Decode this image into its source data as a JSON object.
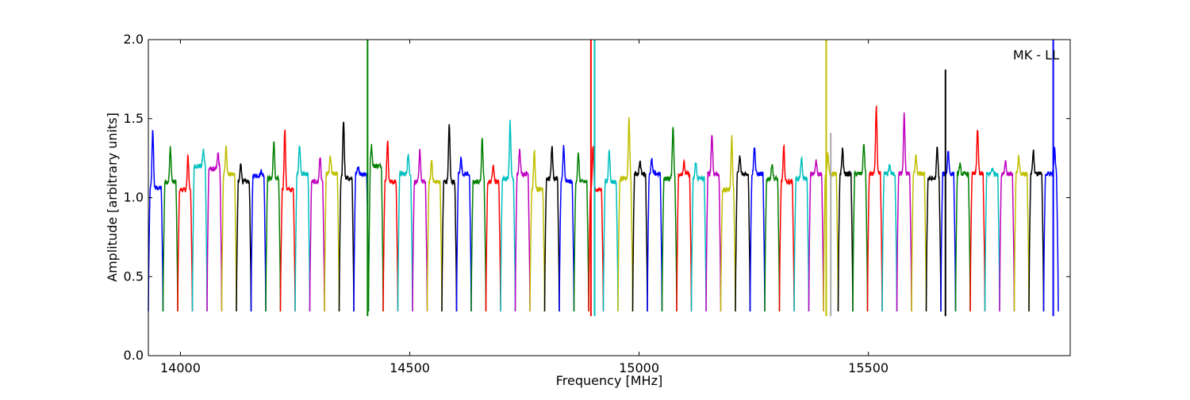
{
  "chart_data": {
    "type": "line",
    "title": "",
    "xlabel": "Frequency [MHz]",
    "ylabel": "Amplitude [arbitrary units]",
    "xlim": [
      13930,
      15940
    ],
    "ylim": [
      0.0,
      2.0
    ],
    "xticks": [
      14000,
      14500,
      15000,
      15500
    ],
    "xtick_labels": [
      "14000",
      "14500",
      "15000",
      "15500"
    ],
    "yticks": [
      0.0,
      0.5,
      1.0,
      1.5,
      2.0
    ],
    "ytick_labels": [
      "0.0",
      "0.5",
      "1.0",
      "1.5",
      "2.0"
    ],
    "grid": false,
    "legend": "none",
    "annotation": "MK - LL",
    "channel_width_mhz": 32,
    "channel_color_cycle": [
      "#0000ff",
      "#008000",
      "#ff0000",
      "#00bfbf",
      "#bf00bf",
      "#bfbf00",
      "#000000"
    ],
    "channels": [
      {
        "x0": 13930,
        "x1": 13962,
        "color": "#0000ff",
        "peak_y": 1.43,
        "peak_pos": 0.3,
        "plateau": 1.06
      },
      {
        "x0": 13962,
        "x1": 13994,
        "color": "#008000",
        "peak_y": 1.32,
        "peak_pos": 0.5,
        "plateau": 1.1
      },
      {
        "x0": 13994,
        "x1": 14026,
        "color": "#ff0000",
        "peak_y": 1.26,
        "peak_pos": 0.7,
        "plateau": 1.05
      },
      {
        "x0": 14026,
        "x1": 14058,
        "color": "#00bfbf",
        "peak_y": 1.3,
        "peak_pos": 0.75,
        "plateau": 1.2
      },
      {
        "x0": 14058,
        "x1": 14090,
        "color": "#bf00bf",
        "peak_y": 1.28,
        "peak_pos": 0.75,
        "plateau": 1.18
      },
      {
        "x0": 14090,
        "x1": 14122,
        "color": "#bfbf00",
        "peak_y": 1.32,
        "peak_pos": 0.3,
        "plateau": 1.15
      },
      {
        "x0": 14122,
        "x1": 14154,
        "color": "#000000",
        "peak_y": 1.22,
        "peak_pos": 0.3,
        "plateau": 1.1
      },
      {
        "x0": 14154,
        "x1": 14186,
        "color": "#0000ff",
        "peak_y": 1.17,
        "peak_pos": 0.7,
        "plateau": 1.14
      },
      {
        "x0": 14186,
        "x1": 14218,
        "color": "#008000",
        "peak_y": 1.35,
        "peak_pos": 0.55,
        "plateau": 1.12
      },
      {
        "x0": 14218,
        "x1": 14250,
        "color": "#ff0000",
        "peak_y": 1.43,
        "peak_pos": 0.3,
        "plateau": 1.05
      },
      {
        "x0": 14250,
        "x1": 14282,
        "color": "#00bfbf",
        "peak_y": 1.34,
        "peak_pos": 0.3,
        "plateau": 1.15
      },
      {
        "x0": 14282,
        "x1": 14314,
        "color": "#bf00bf",
        "peak_y": 1.26,
        "peak_pos": 0.7,
        "plateau": 1.1
      },
      {
        "x0": 14314,
        "x1": 14346,
        "color": "#bfbf00",
        "peak_y": 1.26,
        "peak_pos": 0.4,
        "plateau": 1.15
      },
      {
        "x0": 14346,
        "x1": 14378,
        "color": "#000000",
        "peak_y": 1.49,
        "peak_pos": 0.3,
        "plateau": 1.12
      },
      {
        "x0": 14378,
        "x1": 14410,
        "color": "#0000ff",
        "peak_y": 1.2,
        "peak_pos": 0.3,
        "plateau": 1.15
      },
      {
        "x0": 14410,
        "x1": 14442,
        "color": "#008000",
        "peak_y": 1.33,
        "peak_pos": 0.2,
        "plateau": 1.2
      },
      {
        "x0": 14442,
        "x1": 14474,
        "color": "#ff0000",
        "peak_y": 1.36,
        "peak_pos": 0.3,
        "plateau": 1.1
      },
      {
        "x0": 14474,
        "x1": 14506,
        "color": "#00bfbf",
        "peak_y": 1.27,
        "peak_pos": 0.7,
        "plateau": 1.15
      },
      {
        "x0": 14506,
        "x1": 14538,
        "color": "#bf00bf",
        "peak_y": 1.3,
        "peak_pos": 0.5,
        "plateau": 1.1
      },
      {
        "x0": 14538,
        "x1": 14570,
        "color": "#bfbf00",
        "peak_y": 1.24,
        "peak_pos": 0.3,
        "plateau": 1.1
      },
      {
        "x0": 14570,
        "x1": 14602,
        "color": "#000000",
        "peak_y": 1.47,
        "peak_pos": 0.5,
        "plateau": 1.1
      },
      {
        "x0": 14602,
        "x1": 14634,
        "color": "#0000ff",
        "peak_y": 1.25,
        "peak_pos": 0.3,
        "plateau": 1.15
      },
      {
        "x0": 14634,
        "x1": 14666,
        "color": "#008000",
        "peak_y": 1.38,
        "peak_pos": 0.75,
        "plateau": 1.1
      },
      {
        "x0": 14666,
        "x1": 14698,
        "color": "#ff0000",
        "peak_y": 1.22,
        "peak_pos": 0.5,
        "plateau": 1.1
      },
      {
        "x0": 14698,
        "x1": 14730,
        "color": "#00bfbf",
        "peak_y": 1.48,
        "peak_pos": 0.65,
        "plateau": 1.12
      },
      {
        "x0": 14730,
        "x1": 14762,
        "color": "#bf00bf",
        "peak_y": 1.31,
        "peak_pos": 0.3,
        "plateau": 1.15
      },
      {
        "x0": 14762,
        "x1": 14794,
        "color": "#bfbf00",
        "peak_y": 1.3,
        "peak_pos": 0.3,
        "plateau": 1.05
      },
      {
        "x0": 14794,
        "x1": 14826,
        "color": "#000000",
        "peak_y": 1.33,
        "peak_pos": 0.5,
        "plateau": 1.12
      },
      {
        "x0": 14826,
        "x1": 14858,
        "color": "#0000ff",
        "peak_y": 1.33,
        "peak_pos": 0.3,
        "plateau": 1.1
      },
      {
        "x0": 14858,
        "x1": 14890,
        "color": "#008000",
        "peak_y": 1.28,
        "peak_pos": 0.3,
        "plateau": 1.1
      },
      {
        "x0": 14890,
        "x1": 14922,
        "color": "#ff0000",
        "peak_y": 1.33,
        "peak_pos": 0.3,
        "plateau": 1.05
      },
      {
        "x0": 14922,
        "x1": 14954,
        "color": "#00bfbf",
        "peak_y": 1.31,
        "peak_pos": 0.4,
        "plateau": 1.1
      },
      {
        "x0": 14954,
        "x1": 14986,
        "color": "#bfbf00",
        "peak_y": 1.5,
        "peak_pos": 0.75,
        "plateau": 1.12
      },
      {
        "x0": 14986,
        "x1": 15018,
        "color": "#000000",
        "peak_y": 1.23,
        "peak_pos": 0.5,
        "plateau": 1.15
      },
      {
        "x0": 15018,
        "x1": 15050,
        "color": "#0000ff",
        "peak_y": 1.24,
        "peak_pos": 0.3,
        "plateau": 1.15
      },
      {
        "x0": 15050,
        "x1": 15082,
        "color": "#008000",
        "peak_y": 1.46,
        "peak_pos": 0.75,
        "plateau": 1.12
      },
      {
        "x0": 15082,
        "x1": 15114,
        "color": "#ff0000",
        "peak_y": 1.22,
        "peak_pos": 0.5,
        "plateau": 1.15
      },
      {
        "x0": 15114,
        "x1": 15146,
        "color": "#00bfbf",
        "peak_y": 1.23,
        "peak_pos": 0.3,
        "plateau": 1.12
      },
      {
        "x0": 15146,
        "x1": 15178,
        "color": "#bf00bf",
        "peak_y": 1.4,
        "peak_pos": 0.4,
        "plateau": 1.15
      },
      {
        "x0": 15178,
        "x1": 15210,
        "color": "#bfbf00",
        "peak_y": 1.39,
        "peak_pos": 0.75,
        "plateau": 1.05
      },
      {
        "x0": 15210,
        "x1": 15242,
        "color": "#000000",
        "peak_y": 1.26,
        "peak_pos": 0.3,
        "plateau": 1.15
      },
      {
        "x0": 15242,
        "x1": 15274,
        "color": "#0000ff",
        "peak_y": 1.33,
        "peak_pos": 0.3,
        "plateau": 1.15
      },
      {
        "x0": 15274,
        "x1": 15306,
        "color": "#008000",
        "peak_y": 1.22,
        "peak_pos": 0.5,
        "plateau": 1.12
      },
      {
        "x0": 15306,
        "x1": 15338,
        "color": "#ff0000",
        "peak_y": 1.32,
        "peak_pos": 0.3,
        "plateau": 1.1
      },
      {
        "x0": 15338,
        "x1": 15370,
        "color": "#00bfbf",
        "peak_y": 1.25,
        "peak_pos": 0.5,
        "plateau": 1.12
      },
      {
        "x0": 15370,
        "x1": 15402,
        "color": "#bf00bf",
        "peak_y": 1.23,
        "peak_pos": 0.5,
        "plateau": 1.15
      },
      {
        "x0": 15402,
        "x1": 15434,
        "color": "#bfbf00",
        "peak_y": 1.28,
        "peak_pos": 0.3,
        "plateau": 1.15
      },
      {
        "x0": 15434,
        "x1": 15466,
        "color": "#000000",
        "peak_y": 1.31,
        "peak_pos": 0.3,
        "plateau": 1.15
      },
      {
        "x0": 15466,
        "x1": 15498,
        "color": "#008000",
        "peak_y": 1.35,
        "peak_pos": 0.75,
        "plateau": 1.15
      },
      {
        "x0": 15498,
        "x1": 15530,
        "color": "#ff0000",
        "peak_y": 1.58,
        "peak_pos": 0.6,
        "plateau": 1.15
      },
      {
        "x0": 15530,
        "x1": 15562,
        "color": "#00bfbf",
        "peak_y": 1.21,
        "peak_pos": 0.5,
        "plateau": 1.15
      },
      {
        "x0": 15562,
        "x1": 15594,
        "color": "#bf00bf",
        "peak_y": 1.53,
        "peak_pos": 0.5,
        "plateau": 1.15
      },
      {
        "x0": 15594,
        "x1": 15626,
        "color": "#bfbf00",
        "peak_y": 1.26,
        "peak_pos": 0.3,
        "plateau": 1.15
      },
      {
        "x0": 15626,
        "x1": 15658,
        "color": "#000000",
        "peak_y": 1.32,
        "peak_pos": 0.75,
        "plateau": 1.12
      },
      {
        "x0": 15658,
        "x1": 15690,
        "color": "#0000ff",
        "peak_y": 1.3,
        "peak_pos": 0.5,
        "plateau": 1.15
      },
      {
        "x0": 15690,
        "x1": 15722,
        "color": "#008000",
        "peak_y": 1.21,
        "peak_pos": 0.3,
        "plateau": 1.15
      },
      {
        "x0": 15722,
        "x1": 15754,
        "color": "#ff0000",
        "peak_y": 1.44,
        "peak_pos": 0.5,
        "plateau": 1.15
      },
      {
        "x0": 15754,
        "x1": 15786,
        "color": "#00bfbf",
        "peak_y": 1.19,
        "peak_pos": 0.5,
        "plateau": 1.15
      },
      {
        "x0": 15786,
        "x1": 15818,
        "color": "#bf00bf",
        "peak_y": 1.23,
        "peak_pos": 0.4,
        "plateau": 1.15
      },
      {
        "x0": 15818,
        "x1": 15850,
        "color": "#bfbf00",
        "peak_y": 1.26,
        "peak_pos": 0.3,
        "plateau": 1.15
      },
      {
        "x0": 15850,
        "x1": 15882,
        "color": "#000000",
        "peak_y": 1.3,
        "peak_pos": 0.3,
        "plateau": 1.15
      },
      {
        "x0": 15882,
        "x1": 15914,
        "color": "#0000ff",
        "peak_y": 1.31,
        "peak_pos": 0.75,
        "plateau": 1.15
      }
    ],
    "spikes": [
      {
        "x": 14408,
        "y": 2.0,
        "color": "#008000"
      },
      {
        "x": 14895,
        "y": 2.0,
        "color": "#ff0000"
      },
      {
        "x": 14903,
        "y": 2.0,
        "color": "#00bfbf"
      },
      {
        "x": 15408,
        "y": 2.0,
        "color": "#bfbf00"
      },
      {
        "x": 15418,
        "y": 1.41,
        "color": "#aaaaaa"
      },
      {
        "x": 15668,
        "y": 1.81,
        "color": "#000000"
      },
      {
        "x": 15903,
        "y": 2.0,
        "color": "#0000ff"
      }
    ]
  }
}
